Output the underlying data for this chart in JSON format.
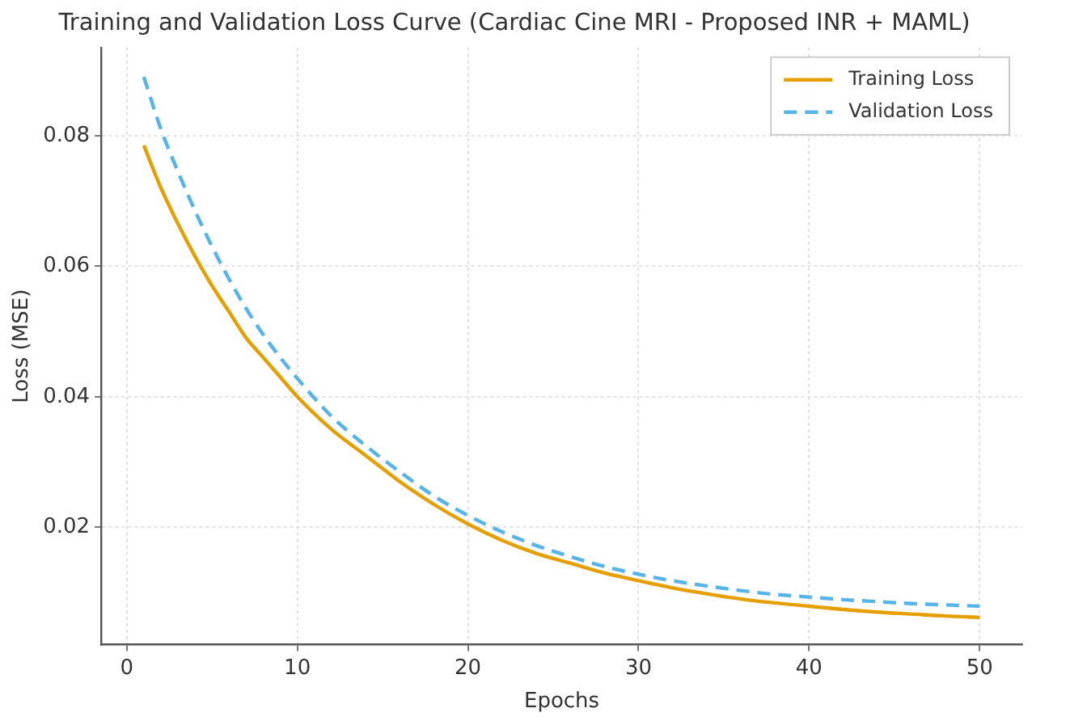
{
  "chart_data": {
    "type": "line",
    "title": "Training and Validation Loss Curve (Cardiac Cine MRI - Proposed INR + MAML)",
    "xlabel": "Epochs",
    "ylabel": "Loss (MSE)",
    "xlim": [
      -1.5,
      52.5
    ],
    "xticks": [
      0,
      10,
      20,
      30,
      40,
      50
    ],
    "ylim": [
      0.002,
      0.0935
    ],
    "yticks": [
      0.02,
      0.04,
      0.06,
      0.08
    ],
    "grid": true,
    "legend": "top right",
    "marker": "none",
    "x": [
      1,
      2,
      3,
      4,
      5,
      6,
      7,
      8,
      9,
      10,
      12,
      14,
      16,
      18,
      20,
      22,
      24,
      26,
      28,
      30,
      32,
      34,
      36,
      38,
      40,
      42,
      44,
      46,
      48,
      50
    ],
    "series": [
      {
        "name": "Training Loss",
        "color": "#e69f00",
        "line_style": "solid",
        "values": [
          0.0785,
          0.072,
          0.0665,
          0.0615,
          0.057,
          0.053,
          0.049,
          0.046,
          0.043,
          0.04,
          0.035,
          0.031,
          0.027,
          0.0235,
          0.0205,
          0.018,
          0.016,
          0.0145,
          0.013,
          0.0118,
          0.0107,
          0.0098,
          0.009,
          0.0084,
          0.0079,
          0.0074,
          0.007,
          0.0067,
          0.0064,
          0.0062
        ]
      },
      {
        "name": "Validation Loss",
        "color": "#56b4e9",
        "line_style": "dashed",
        "values": [
          0.089,
          0.081,
          0.0745,
          0.0685,
          0.063,
          0.058,
          0.0535,
          0.0495,
          0.046,
          0.0428,
          0.037,
          0.0325,
          0.0285,
          0.0248,
          0.0218,
          0.0193,
          0.0172,
          0.0155,
          0.014,
          0.0128,
          0.0118,
          0.011,
          0.0103,
          0.0097,
          0.0093,
          0.0089,
          0.0086,
          0.0083,
          0.0081,
          0.0079
        ]
      }
    ]
  }
}
